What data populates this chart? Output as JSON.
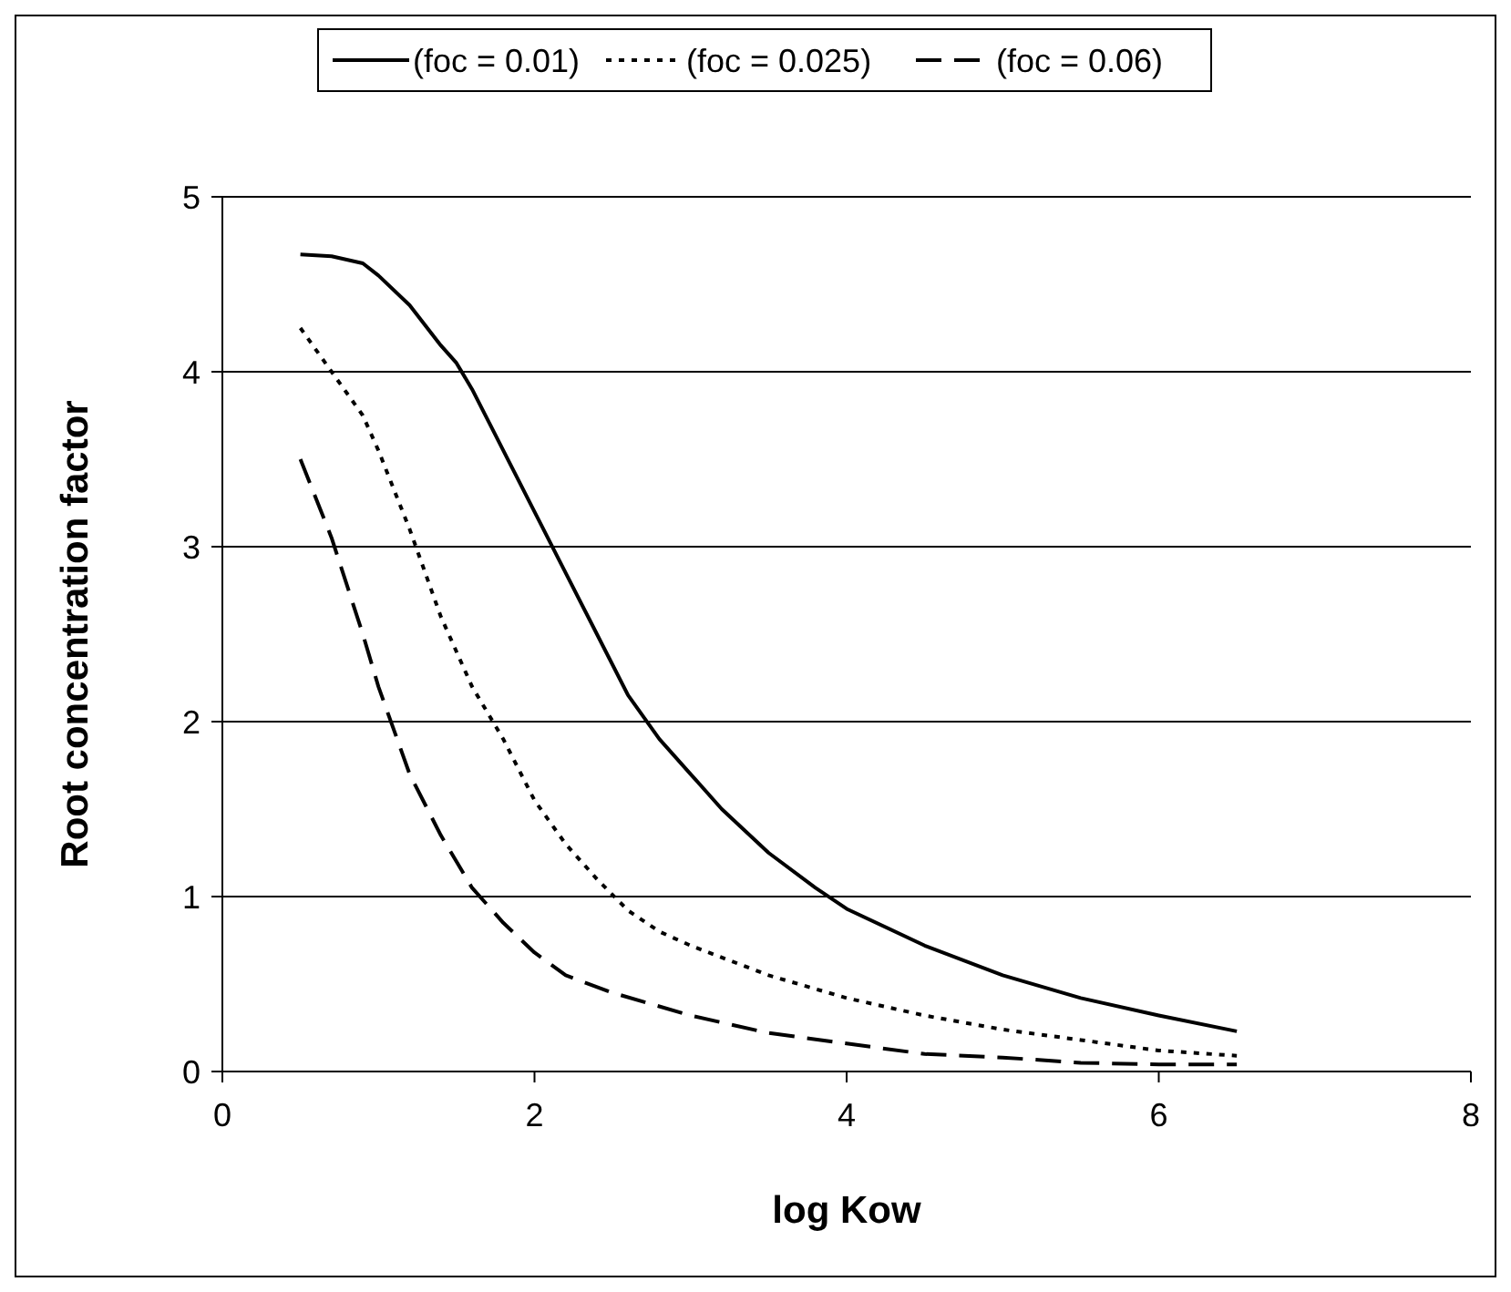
{
  "chart_data": {
    "type": "line",
    "xlabel": "log Kow",
    "ylabel": "Root concentration factor",
    "xlim": [
      0,
      8
    ],
    "xticks": [
      0,
      2,
      4,
      6,
      8
    ],
    "ylim": [
      0,
      5
    ],
    "yticks": [
      0,
      1,
      2,
      3,
      4,
      5
    ],
    "grid": "y",
    "legend": "top",
    "marker": "none",
    "x": [
      0.5,
      0.7,
      0.9,
      1.0,
      1.2,
      1.4,
      1.5,
      1.6,
      1.8,
      2.0,
      2.2,
      2.4,
      2.6,
      2.8,
      3.0,
      3.2,
      3.5,
      3.8,
      4.0,
      4.5,
      5.0,
      5.5,
      6.0,
      6.5
    ],
    "series": [
      {
        "name": "(foc = 0.01)",
        "color": "#000000",
        "line_style": "solid",
        "values": [
          4.67,
          4.66,
          4.62,
          4.55,
          4.38,
          4.15,
          4.05,
          3.9,
          3.55,
          3.2,
          2.85,
          2.5,
          2.15,
          1.9,
          1.7,
          1.5,
          1.25,
          1.05,
          0.93,
          0.72,
          0.55,
          0.42,
          0.32,
          0.23
        ]
      },
      {
        "name": "(foc = 0.025)",
        "color": "#000000",
        "line_style": "dotted",
        "x": [
          0.5,
          0.7,
          0.9,
          1.0,
          1.2,
          1.4,
          1.6,
          1.8,
          2.0,
          2.2,
          2.4,
          2.6,
          2.8,
          3.0,
          3.5,
          4.0,
          4.5,
          5.0,
          5.5,
          6.0,
          6.5
        ],
        "values": [
          4.25,
          4.0,
          3.75,
          3.55,
          3.1,
          2.6,
          2.2,
          1.9,
          1.55,
          1.3,
          1.1,
          0.92,
          0.8,
          0.72,
          0.55,
          0.42,
          0.32,
          0.24,
          0.18,
          0.12,
          0.09
        ]
      },
      {
        "name": "(foc = 0.06)",
        "color": "#000000",
        "line_style": "dashed",
        "x": [
          0.5,
          0.7,
          0.9,
          1.0,
          1.2,
          1.4,
          1.6,
          1.8,
          2.0,
          2.2,
          2.5,
          3.0,
          3.5,
          4.0,
          4.5,
          5.0,
          5.5,
          6.0,
          6.5
        ],
        "values": [
          3.5,
          3.05,
          2.5,
          2.2,
          1.7,
          1.35,
          1.05,
          0.85,
          0.68,
          0.55,
          0.45,
          0.32,
          0.22,
          0.16,
          0.1,
          0.08,
          0.05,
          0.04,
          0.04
        ]
      }
    ]
  }
}
